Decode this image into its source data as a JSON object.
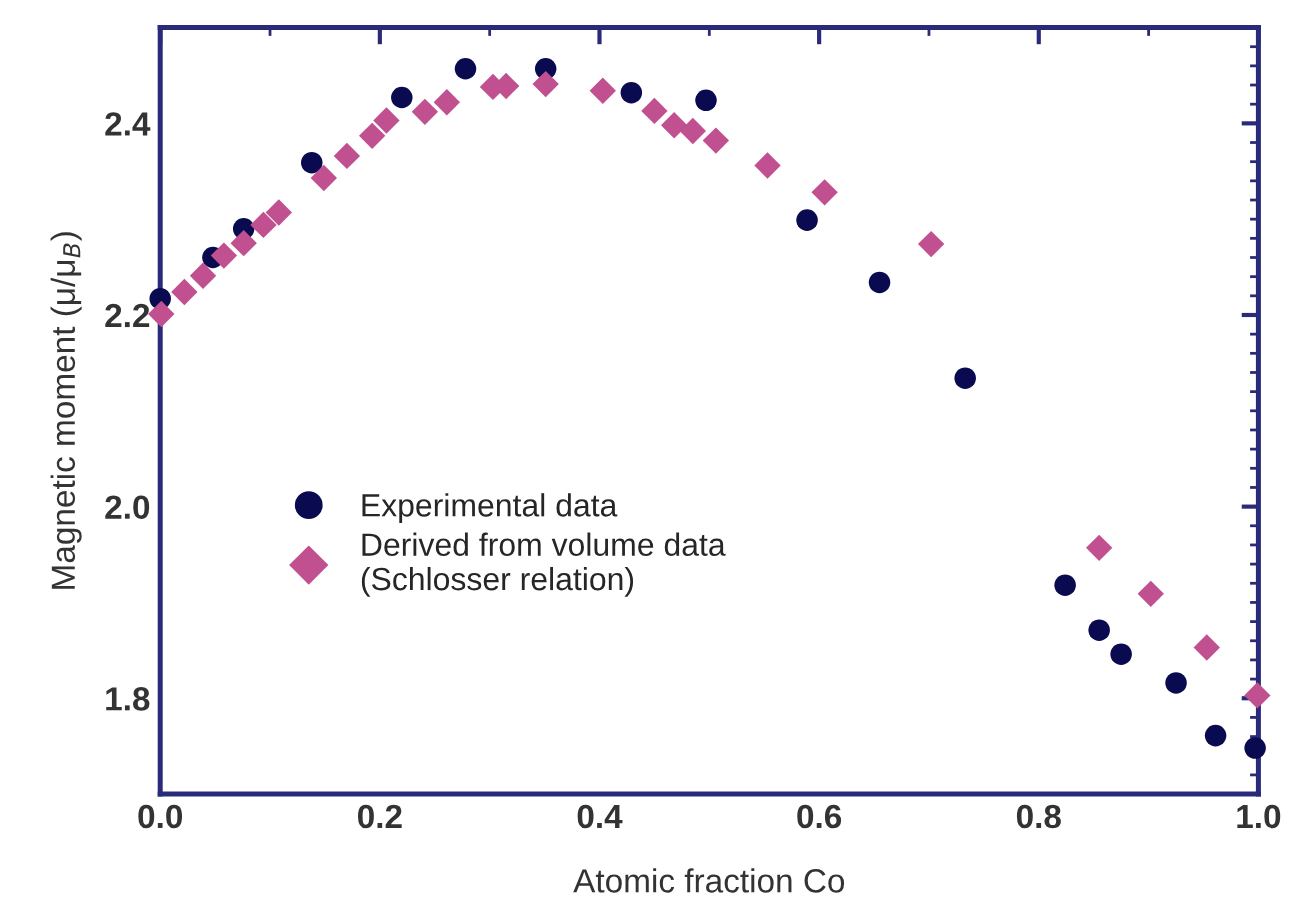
{
  "chart_data": {
    "type": "scatter",
    "xlabel": "Atomic fraction Co",
    "ylabel": "Magnetic moment (μ/μ$_{B}$)",
    "xlim": [
      0,
      1.0
    ],
    "xticks": [
      {
        "value": 0,
        "label": "0.0"
      },
      0.2,
      0.4,
      0.6,
      0.8,
      {
        "value": 1.0,
        "label": "1.0"
      }
    ],
    "ylim": [
      1.7,
      2.5
    ],
    "yticks": [
      1.8,
      {
        "value": 2.0,
        "label": "2.0"
      },
      2.2,
      2.4
    ],
    "grid": false,
    "legend": "center left",
    "series": [
      {
        "name": "Experimental data",
        "color": "#0a0a50",
        "marker": "circle",
        "x": [
          0.0,
          0.048,
          0.076,
          0.138,
          0.22,
          0.278,
          0.351,
          0.429,
          0.497,
          0.589,
          0.655,
          0.733,
          0.824,
          0.855,
          0.875,
          0.925,
          0.961,
          0.997
        ],
        "values": [
          2.217,
          2.26,
          2.29,
          2.359,
          2.427,
          2.457,
          2.457,
          2.432,
          2.424,
          2.299,
          2.234,
          2.134,
          1.918,
          1.871,
          1.846,
          1.816,
          1.761,
          1.748
        ]
      },
      {
        "name": "Derived from volume data\n(Schlosser relation)",
        "color": "#c0508f",
        "marker": "diamond",
        "x": [
          0.001,
          0.022,
          0.039,
          0.058,
          0.076,
          0.094,
          0.108,
          0.149,
          0.17,
          0.193,
          0.206,
          0.241,
          0.261,
          0.303,
          0.315,
          0.351,
          0.403,
          0.45,
          0.468,
          0.485,
          0.506,
          0.553,
          0.605,
          0.702,
          0.855,
          0.902,
          0.953,
          0.999
        ],
        "values": [
          2.201,
          2.224,
          2.241,
          2.262,
          2.275,
          2.294,
          2.307,
          2.343,
          2.366,
          2.387,
          2.403,
          2.412,
          2.422,
          2.438,
          2.439,
          2.441,
          2.434,
          2.413,
          2.398,
          2.392,
          2.382,
          2.356,
          2.328,
          2.274,
          1.957,
          1.909,
          1.853,
          1.803
        ]
      }
    ]
  }
}
